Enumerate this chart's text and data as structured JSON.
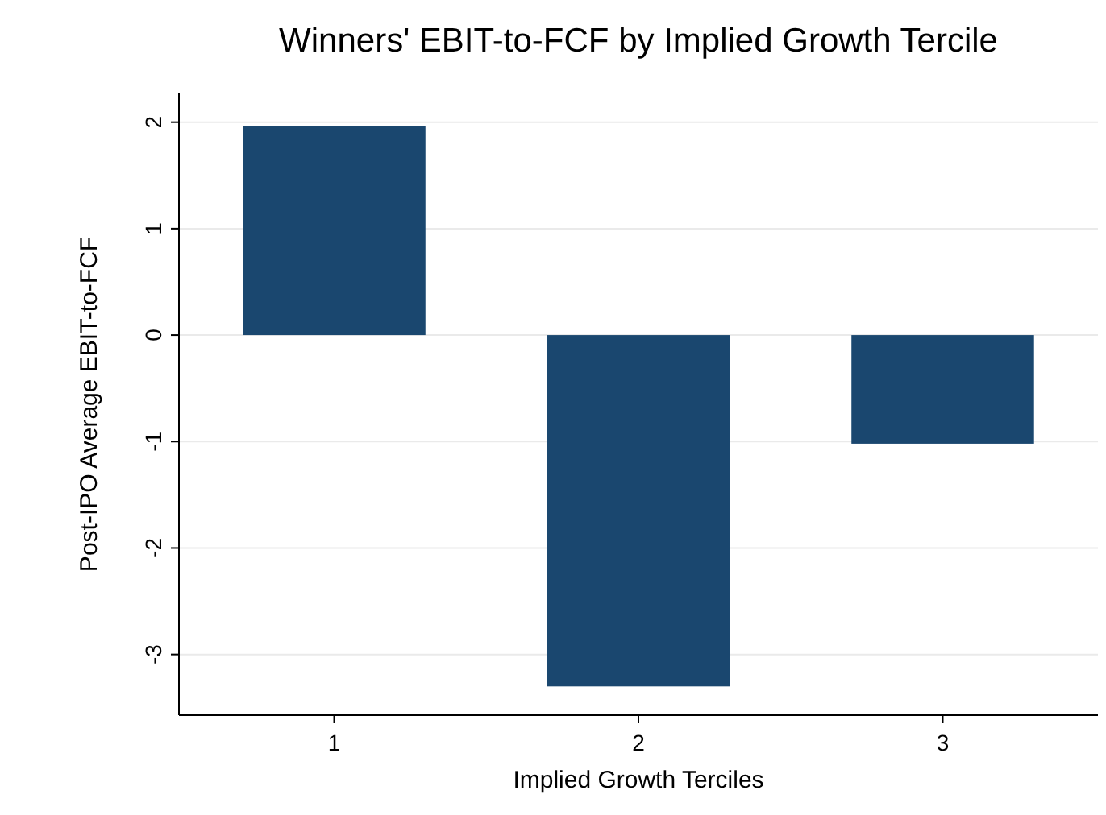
{
  "chart_data": {
    "type": "bar",
    "title": "Winners' EBIT-to-FCF by Implied Growth Tercile",
    "xlabel": "Implied Growth Terciles",
    "ylabel": "Post-IPO Average EBIT-to-FCF",
    "categories": [
      "1",
      "2",
      "3"
    ],
    "values": [
      1.96,
      -3.3,
      -1.02
    ],
    "color": "#1a476f",
    "ylim": [
      -3.57,
      2.27
    ],
    "yticks": [
      -3,
      -2,
      -1,
      0,
      1,
      2
    ],
    "grid": "y"
  }
}
